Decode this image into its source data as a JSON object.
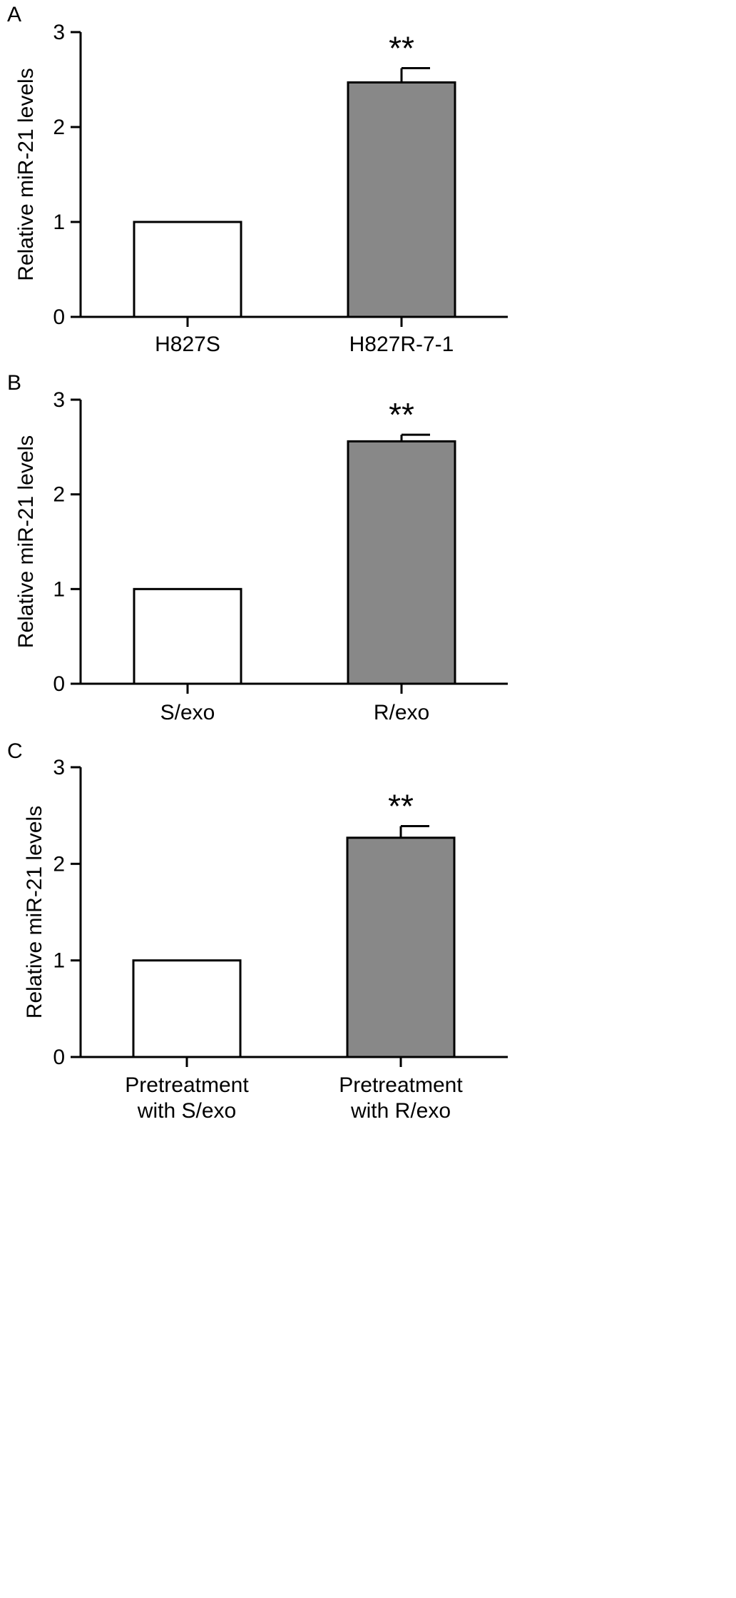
{
  "chart_data": [
    {
      "panel": "A",
      "type": "bar",
      "categories": [
        "H827S",
        "H827R-7-1"
      ],
      "values": [
        1.0,
        2.47
      ],
      "errors": [
        0,
        0.15
      ],
      "significance": [
        "",
        "**"
      ],
      "ylabel": "Relative miR-21 levels",
      "xlabel": "",
      "ylim": [
        0,
        3
      ],
      "yticks": [
        "0",
        "1",
        "2",
        "3"
      ],
      "bar_colors": [
        "#ffffff",
        "#888888"
      ],
      "grid": false
    },
    {
      "panel": "B",
      "type": "bar",
      "categories": [
        "S/exo",
        "R/exo"
      ],
      "values": [
        1.0,
        2.56
      ],
      "errors": [
        0,
        0.07
      ],
      "significance": [
        "",
        "**"
      ],
      "ylabel": "Relative miR-21 levels",
      "xlabel": "",
      "ylim": [
        0,
        3
      ],
      "yticks": [
        "0",
        "1",
        "2",
        "3"
      ],
      "bar_colors": [
        "#ffffff",
        "#888888"
      ],
      "grid": false
    },
    {
      "panel": "C",
      "type": "bar",
      "categories": [
        [
          "Pretreatment",
          "with S/exo"
        ],
        [
          "Pretreatment",
          "with R/exo"
        ]
      ],
      "values": [
        1.0,
        2.27
      ],
      "errors": [
        0,
        0.12
      ],
      "significance": [
        "",
        "**"
      ],
      "ylabel": "Relative miR-21 levels",
      "xlabel": "",
      "ylim": [
        0,
        3
      ],
      "yticks": [
        "0",
        "1",
        "2",
        "3"
      ],
      "bar_colors": [
        "#ffffff",
        "#888888"
      ],
      "grid": false
    }
  ]
}
